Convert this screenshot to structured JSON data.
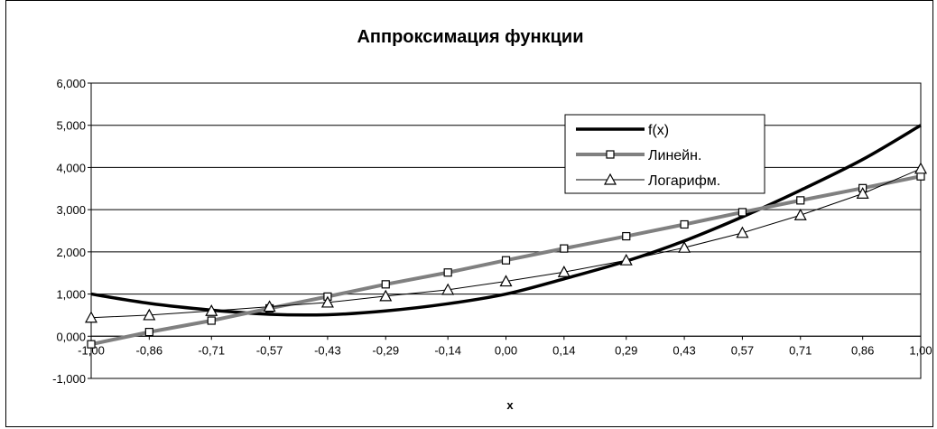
{
  "chart_data": {
    "type": "line",
    "title": "Аппроксимация функции",
    "xlabel": "x",
    "ylabel": "",
    "ylim": [
      -1,
      6
    ],
    "y_ticks": [
      "-1,000",
      "0,000",
      "1,000",
      "2,000",
      "3,000",
      "4,000",
      "5,000",
      "6,000"
    ],
    "x": [
      -1.0,
      -0.86,
      -0.71,
      -0.57,
      -0.43,
      -0.29,
      -0.14,
      0.0,
      0.14,
      0.29,
      0.43,
      0.57,
      0.71,
      0.86,
      1.0
    ],
    "x_tick_labels": [
      "-1,00",
      "-0,86",
      "-0,71",
      "-0,57",
      "-0,43",
      "-0,29",
      "-0,14",
      "0,00",
      "0,14",
      "0,29",
      "0,43",
      "0,57",
      "0,71",
      "0,86",
      "1,00"
    ],
    "grid": "horizontal",
    "legend_position": "top-right",
    "series": [
      {
        "name": "f(x)",
        "marker": "none",
        "color": "#000000",
        "values": [
          1.0,
          0.78,
          0.62,
          0.52,
          0.51,
          0.6,
          0.77,
          1.0,
          1.36,
          1.78,
          2.26,
          2.83,
          3.46,
          4.19,
          5.0
        ]
      },
      {
        "name": "Линейн.",
        "marker": "square",
        "color": "#888888",
        "values": [
          -0.19,
          0.1,
          0.37,
          0.66,
          0.94,
          1.23,
          1.51,
          1.8,
          2.08,
          2.37,
          2.65,
          2.94,
          3.22,
          3.51,
          3.79
        ]
      },
      {
        "name": "Логарифм.",
        "marker": "triangle",
        "color": "#000000",
        "values": [
          0.44,
          0.5,
          0.6,
          0.7,
          0.8,
          0.95,
          1.1,
          1.3,
          1.52,
          1.8,
          2.1,
          2.45,
          2.87,
          3.38,
          3.97
        ]
      }
    ]
  }
}
